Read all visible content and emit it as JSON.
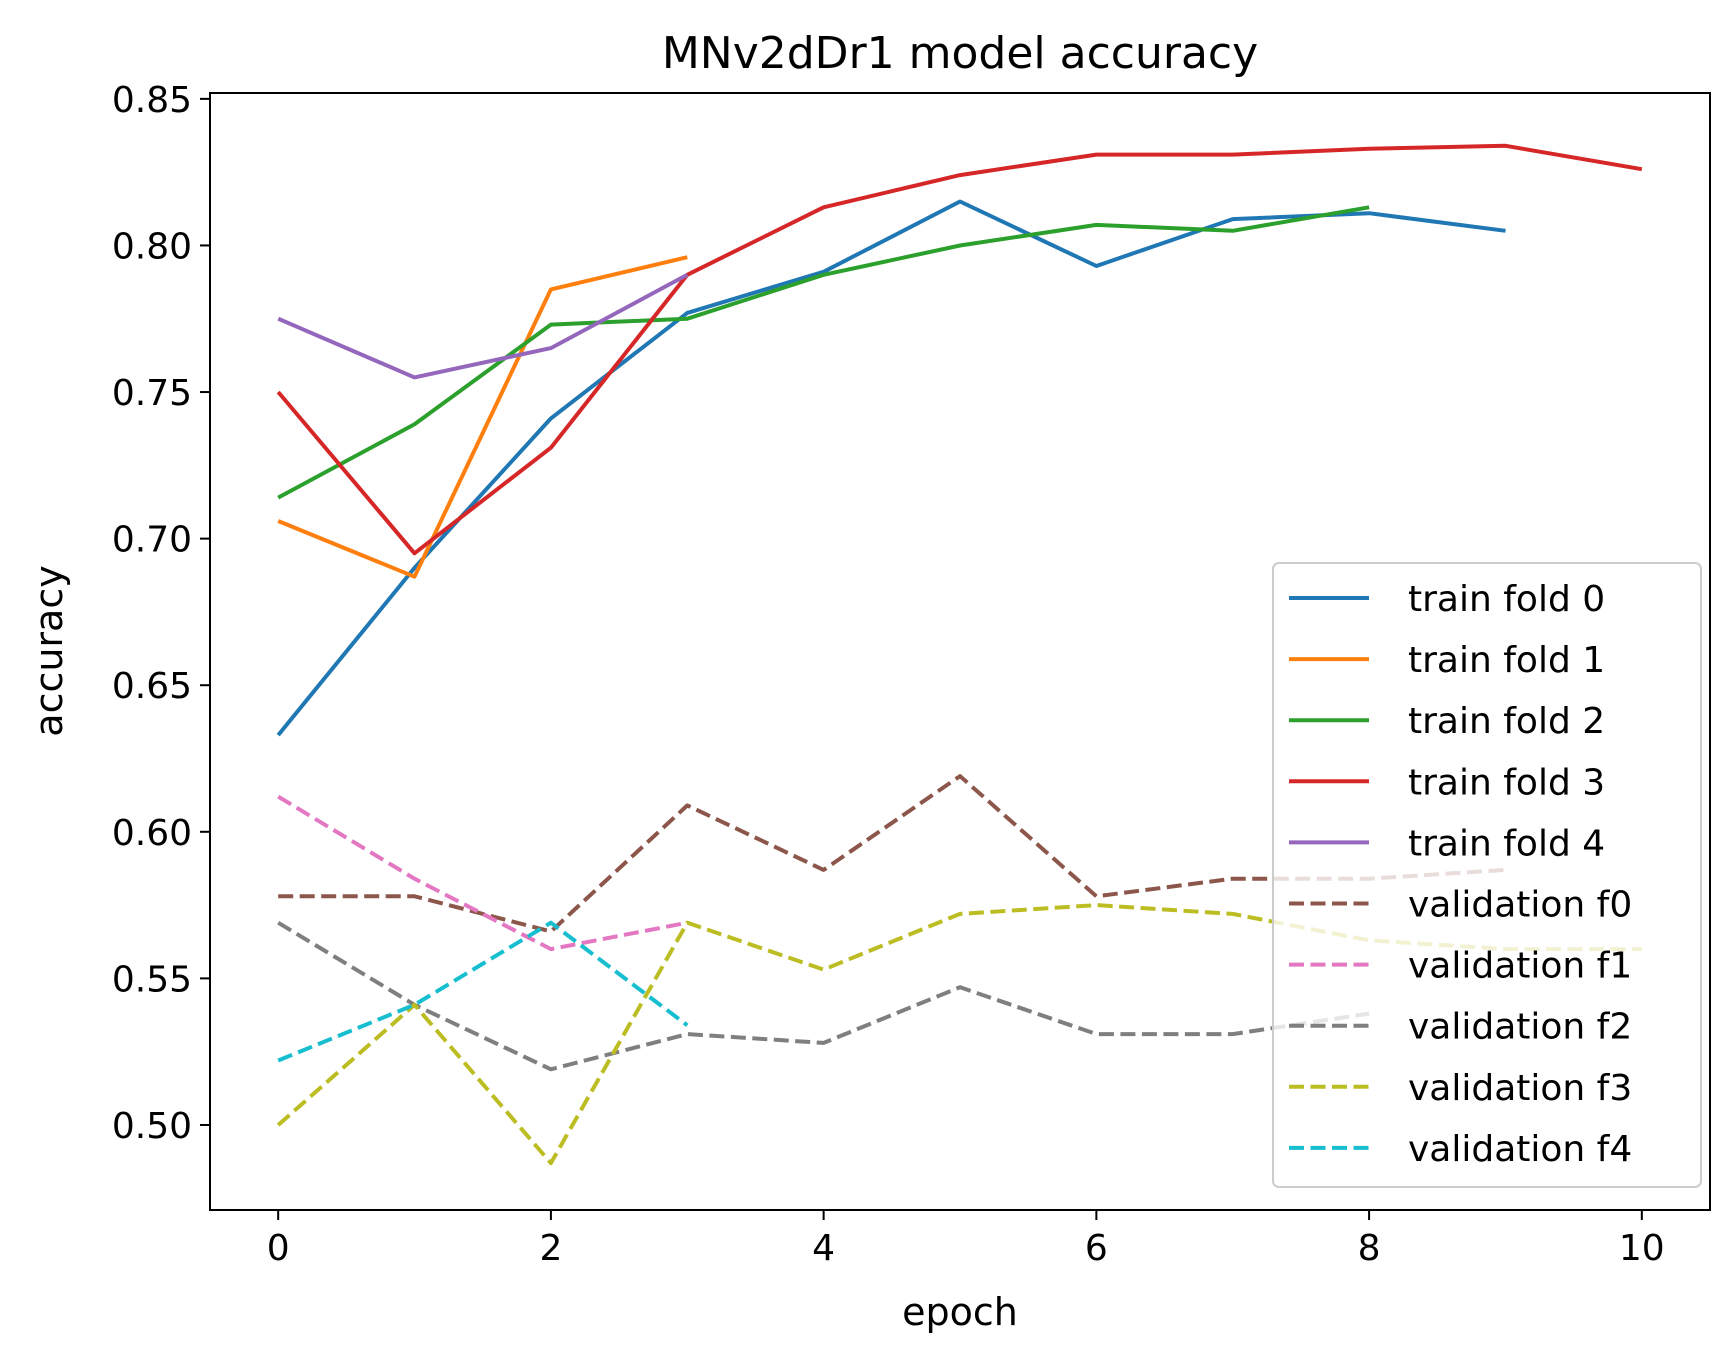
{
  "chart_data": {
    "type": "line",
    "title": "MNv2dDr1 model accuracy",
    "xlabel": "epoch",
    "ylabel": "accuracy",
    "xlim": [
      -0.5,
      10.5
    ],
    "ylim": [
      0.471,
      0.852
    ],
    "xticks": [
      0,
      2,
      4,
      6,
      8,
      10
    ],
    "xtick_labels": [
      "0",
      "2",
      "4",
      "6",
      "8",
      "10"
    ],
    "yticks": [
      0.5,
      0.55,
      0.6,
      0.65,
      0.7,
      0.75,
      0.8,
      0.85
    ],
    "ytick_labels": [
      "0.50",
      "0.55",
      "0.60",
      "0.65",
      "0.70",
      "0.75",
      "0.80",
      "0.85"
    ],
    "grid": false,
    "legend_position": "lower-right",
    "series": [
      {
        "name": "train fold 0",
        "color": "#1f77b4",
        "dash": "solid",
        "x": [
          0,
          1,
          2,
          3,
          4,
          5,
          6,
          7,
          8,
          9
        ],
        "y": [
          0.633,
          0.69,
          0.741,
          0.777,
          0.791,
          0.815,
          0.793,
          0.809,
          0.811,
          0.805
        ]
      },
      {
        "name": "train fold 1",
        "color": "#ff7f0e",
        "dash": "solid",
        "x": [
          0,
          1,
          2,
          3
        ],
        "y": [
          0.706,
          0.687,
          0.785,
          0.796
        ]
      },
      {
        "name": "train fold 2",
        "color": "#2ca02c",
        "dash": "solid",
        "x": [
          0,
          1,
          2,
          3,
          4,
          5,
          6,
          7,
          8
        ],
        "y": [
          0.714,
          0.739,
          0.773,
          0.775,
          0.79,
          0.8,
          0.807,
          0.805,
          0.813
        ]
      },
      {
        "name": "train fold 3",
        "color": "#d62728",
        "dash": "solid",
        "x": [
          0,
          1,
          2,
          3,
          4,
          5,
          6,
          7,
          8,
          9,
          10
        ],
        "y": [
          0.75,
          0.695,
          0.731,
          0.79,
          0.813,
          0.824,
          0.831,
          0.831,
          0.833,
          0.834,
          0.826
        ]
      },
      {
        "name": "train fold 4",
        "color": "#9467bd",
        "dash": "solid",
        "x": [
          0,
          1,
          2,
          3
        ],
        "y": [
          0.775,
          0.755,
          0.765,
          0.79
        ]
      },
      {
        "name": "validation f0",
        "color": "#8c564b",
        "dash": "dashed",
        "x": [
          0,
          1,
          2,
          3,
          4,
          5,
          6,
          7,
          8,
          9
        ],
        "y": [
          0.578,
          0.578,
          0.566,
          0.609,
          0.587,
          0.619,
          0.578,
          0.584,
          0.584,
          0.587
        ]
      },
      {
        "name": "validation f1",
        "color": "#e377c2",
        "dash": "dashed",
        "x": [
          0,
          1,
          2,
          3
        ],
        "y": [
          0.612,
          0.584,
          0.56,
          0.569
        ]
      },
      {
        "name": "validation f2",
        "color": "#7f7f7f",
        "dash": "dashed",
        "x": [
          0,
          1,
          2,
          3,
          4,
          5,
          6,
          7,
          8
        ],
        "y": [
          0.569,
          0.541,
          0.519,
          0.531,
          0.528,
          0.547,
          0.531,
          0.531,
          0.538
        ]
      },
      {
        "name": "validation f3",
        "color": "#bcbd22",
        "dash": "dashed",
        "x": [
          0,
          1,
          2,
          3,
          4,
          5,
          6,
          7,
          8,
          9,
          10
        ],
        "y": [
          0.5,
          0.541,
          0.487,
          0.569,
          0.553,
          0.572,
          0.575,
          0.572,
          0.563,
          0.56,
          0.56
        ]
      },
      {
        "name": "validation f4",
        "color": "#17becf",
        "dash": "dashed",
        "x": [
          0,
          1,
          2,
          3
        ],
        "y": [
          0.522,
          0.541,
          0.569,
          0.534
        ]
      }
    ]
  }
}
